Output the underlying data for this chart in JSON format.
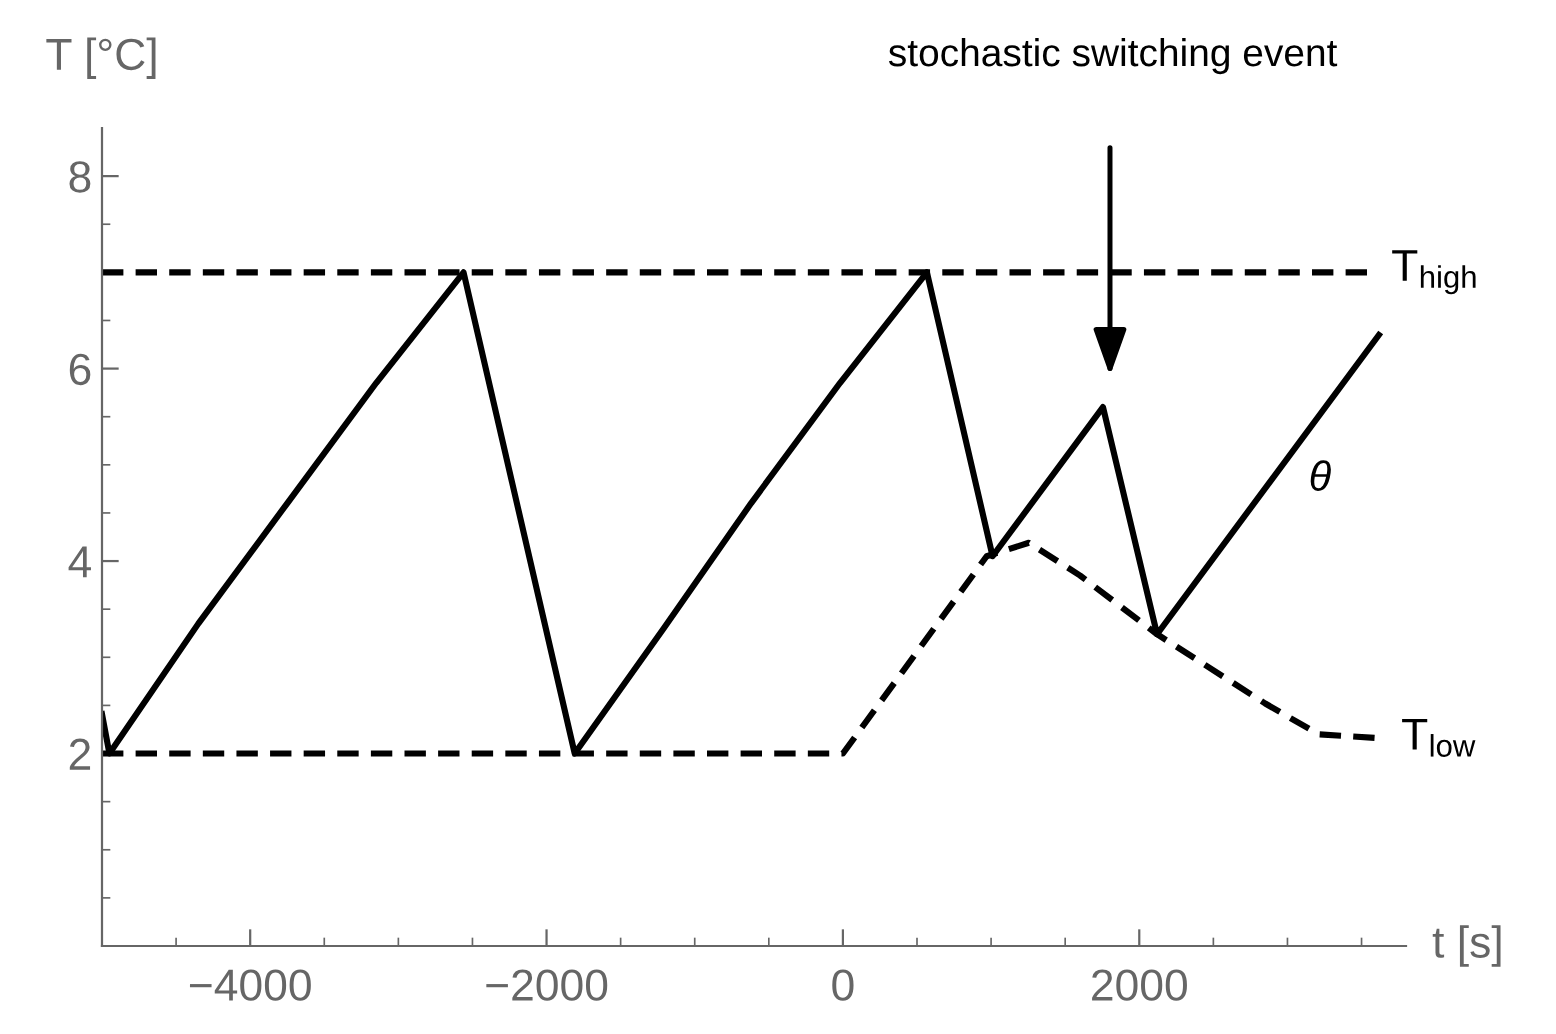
{
  "chart_data": {
    "type": "line",
    "xlabel": "t [s]",
    "ylabel": "T [°C]",
    "xlim": [
      -5000,
      3800
    ],
    "ylim": [
      0,
      8.5
    ],
    "xticks": [
      {
        "value": -4500,
        "label": null
      },
      {
        "value": -4000,
        "label": "−4000"
      },
      {
        "value": -3500,
        "label": null
      },
      {
        "value": -3000,
        "label": null
      },
      {
        "value": -2500,
        "label": null
      },
      {
        "value": -2000,
        "label": "−2000"
      },
      {
        "value": -1500,
        "label": null
      },
      {
        "value": -1000,
        "label": null
      },
      {
        "value": -500,
        "label": null
      },
      0,
      {
        "value": 500,
        "label": null
      },
      {
        "value": 1000,
        "label": null
      },
      {
        "value": 1500,
        "label": null
      },
      2000,
      {
        "value": 2500,
        "label": null
      },
      {
        "value": 3000,
        "label": null
      },
      {
        "value": 3500,
        "label": null
      }
    ],
    "yticks": [
      {
        "value": 0.5,
        "label": null
      },
      {
        "value": 1,
        "label": null
      },
      {
        "value": 1.5,
        "label": null
      },
      2,
      {
        "value": 2.5,
        "label": null
      },
      {
        "value": 3,
        "label": null
      },
      {
        "value": 3.5,
        "label": null
      },
      4,
      {
        "value": 4.5,
        "label": null
      },
      {
        "value": 5,
        "label": null
      },
      {
        "value": 5.5,
        "label": null
      },
      6,
      {
        "value": 6.5,
        "label": null
      },
      {
        "value": 7,
        "label": null
      },
      {
        "value": 7.5,
        "label": null
      },
      8
    ],
    "grid": false,
    "legend": false,
    "series": [
      {
        "color": "#000000",
        "line_style": "solid",
        "x": [
          -5000,
          -4950,
          -4350,
          -3750,
          -3150,
          -2560,
          -1810,
          -1210,
          -620,
          -20,
          567,
          1010,
          1755,
          2120,
          3617
        ],
        "values": [
          2.41,
          2.0,
          3.35,
          4.6,
          5.85,
          7.0,
          2.0,
          3.3,
          4.6,
          5.85,
          7.0,
          4.05,
          5.6,
          3.24,
          6.35
        ]
      },
      {
        "name": "T$_{high}$",
        "color": "#000000",
        "line_style": "dashed",
        "x": [
          -5000,
          3550
        ],
        "values": [
          7,
          7
        ]
      },
      {
        "name": "T$_{low}$",
        "color": "#000000",
        "line_style": "dashed",
        "x": [
          -5000,
          0,
          970,
          1255,
          1600,
          2120,
          2850,
          3210,
          3617
        ],
        "values": [
          2,
          2,
          4.05,
          4.19,
          3.85,
          3.24,
          2.52,
          2.2,
          2.16
        ]
      }
    ],
    "annotations": [
      "stochastic switching event",
      "θ"
    ]
  }
}
